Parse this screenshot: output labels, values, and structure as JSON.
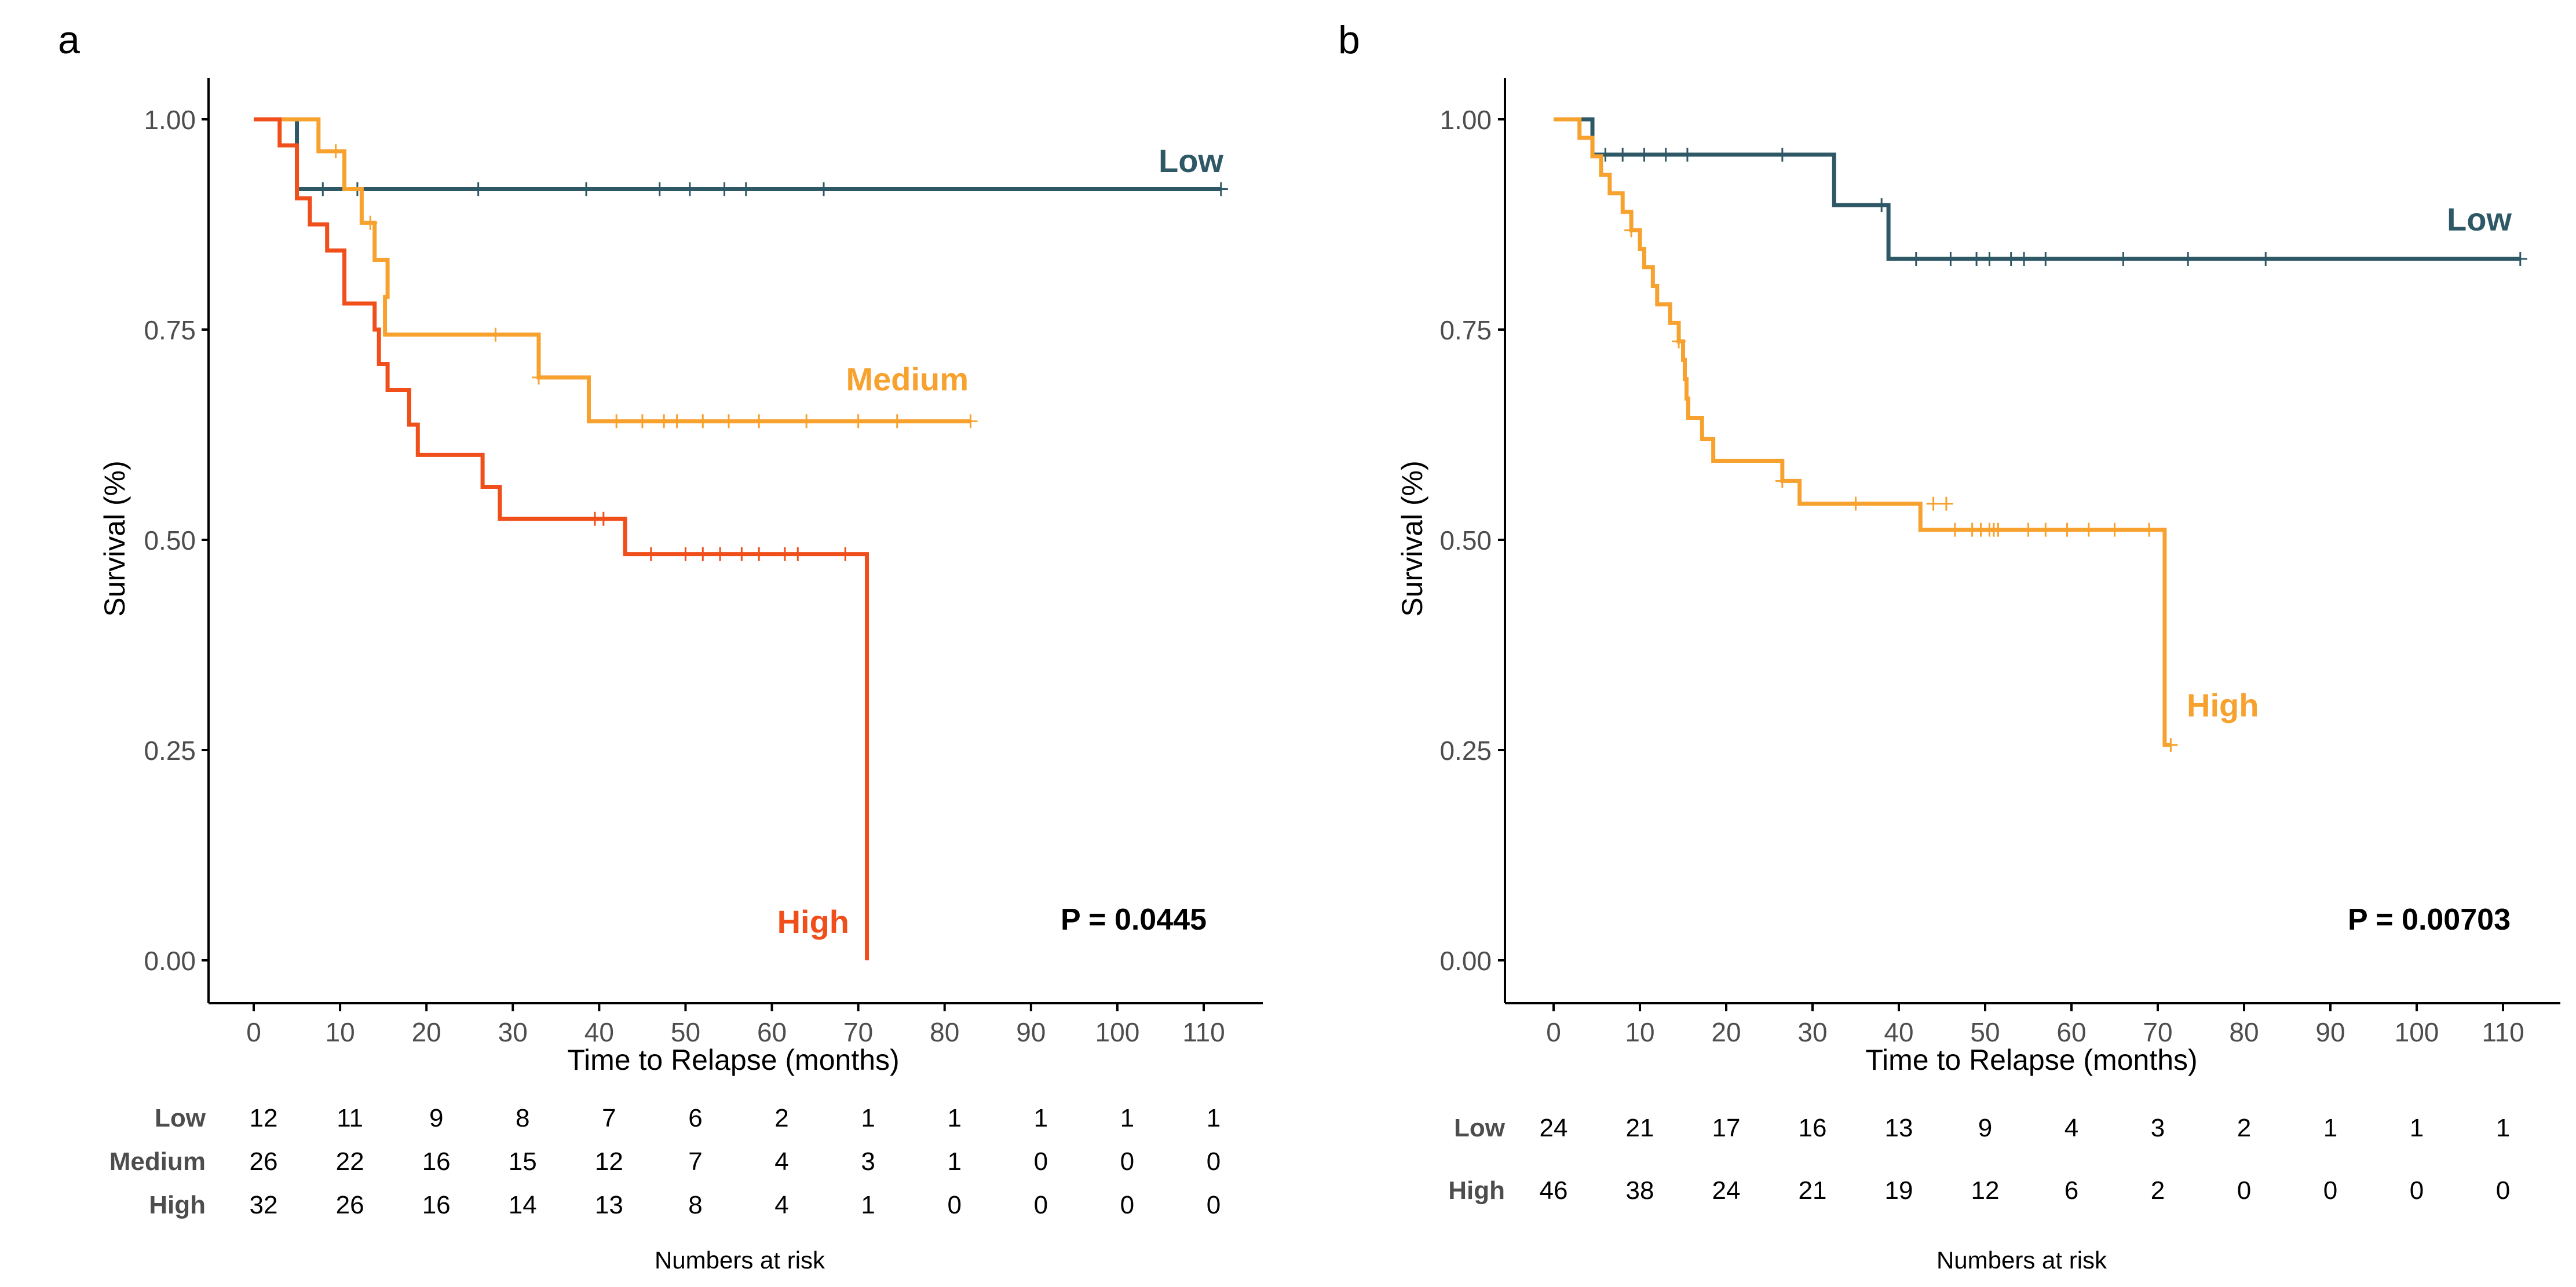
{
  "chart_data": [
    {
      "panel_label": "a",
      "type": "line",
      "subtype": "kaplan-meier",
      "xlabel": "Time to Relapse (months)",
      "ylabel": "Survival (%)",
      "xlim": [
        0,
        110
      ],
      "ylim": [
        0,
        1
      ],
      "xticks": [
        0,
        10,
        20,
        30,
        40,
        50,
        60,
        70,
        80,
        90,
        100,
        110
      ],
      "xtick_labels": [
        "0",
        "10",
        "20",
        "30",
        "40",
        "50",
        "60",
        "70",
        "80",
        "90",
        "100",
        "110"
      ],
      "yticks": [
        0,
        0.25,
        0.5,
        0.75,
        1
      ],
      "ytick_labels": [
        "0.00",
        "0.25",
        "0.50",
        "0.75",
        "1.00"
      ],
      "grid": false,
      "legend": "none (curve labels placed next to lines)",
      "pvalue": "P = 0.0445",
      "series": [
        {
          "name": "Low",
          "color": "#2F5866",
          "steps": [
            [
              0,
              1.0
            ],
            [
              5,
              0.917
            ],
            [
              112,
              0.917
            ]
          ],
          "censors": [
            [
              8,
              0.917
            ],
            [
              12,
              0.917
            ],
            [
              26,
              0.917
            ],
            [
              38.5,
              0.917
            ],
            [
              47,
              0.917
            ],
            [
              50.5,
              0.917
            ],
            [
              54.5,
              0.917
            ],
            [
              57,
              0.917
            ],
            [
              66,
              0.917
            ],
            [
              112,
              0.917
            ]
          ]
        },
        {
          "name": "Medium",
          "color": "#F7A12E",
          "steps": [
            [
              0,
              1.0
            ],
            [
              7.5,
              0.962
            ],
            [
              10.5,
              0.917
            ],
            [
              12.5,
              0.877
            ],
            [
              14,
              0.833
            ],
            [
              15.5,
              0.789
            ],
            [
              15.2,
              0.744
            ],
            [
              33,
              0.693
            ],
            [
              38.8,
              0.641
            ],
            [
              83,
              0.641
            ]
          ],
          "censors": [
            [
              9.5,
              0.962
            ],
            [
              13.5,
              0.877
            ],
            [
              28,
              0.744
            ],
            [
              33,
              0.693
            ],
            [
              42,
              0.641
            ],
            [
              45,
              0.641
            ],
            [
              47.5,
              0.641
            ],
            [
              49,
              0.641
            ],
            [
              52,
              0.641
            ],
            [
              55,
              0.641
            ],
            [
              58.5,
              0.641
            ],
            [
              64,
              0.641
            ],
            [
              70,
              0.641
            ],
            [
              74.5,
              0.641
            ],
            [
              83,
              0.641
            ]
          ]
        },
        {
          "name": "High",
          "color": "#F04E1A",
          "steps": [
            [
              0,
              1.0
            ],
            [
              3,
              0.969
            ],
            [
              5,
              0.906
            ],
            [
              6.5,
              0.875
            ],
            [
              8.5,
              0.844
            ],
            [
              10.5,
              0.781
            ],
            [
              14,
              0.75
            ],
            [
              14.5,
              0.709
            ],
            [
              15.5,
              0.678
            ],
            [
              18,
              0.637
            ],
            [
              19,
              0.601
            ],
            [
              26.5,
              0.563
            ],
            [
              28.5,
              0.525
            ],
            [
              43,
              0.483
            ],
            [
              71,
              0.483
            ],
            [
              71,
              0.0
            ]
          ],
          "censors": [
            [
              39.5,
              0.525
            ],
            [
              40.5,
              0.525
            ],
            [
              46,
              0.483
            ],
            [
              50,
              0.483
            ],
            [
              52,
              0.483
            ],
            [
              54,
              0.483
            ],
            [
              56.5,
              0.483
            ],
            [
              58.5,
              0.483
            ],
            [
              61.5,
              0.483
            ],
            [
              63,
              0.483
            ],
            [
              68.5,
              0.483
            ]
          ]
        }
      ],
      "risk_table": {
        "title": "Numbers at risk",
        "rows": [
          {
            "label": "Low",
            "values": [
              "12",
              "11",
              "9",
              "8",
              "7",
              "6",
              "2",
              "1",
              "1",
              "1",
              "1",
              "1"
            ]
          },
          {
            "label": "Medium",
            "values": [
              "26",
              "22",
              "16",
              "15",
              "12",
              "7",
              "4",
              "3",
              "1",
              "0",
              "0",
              "0"
            ]
          },
          {
            "label": "High",
            "values": [
              "32",
              "26",
              "16",
              "14",
              "13",
              "8",
              "4",
              "1",
              "0",
              "0",
              "0",
              "0"
            ]
          }
        ]
      }
    },
    {
      "panel_label": "b",
      "type": "line",
      "subtype": "kaplan-meier",
      "xlabel": "Time to Relapse (months)",
      "ylabel": "Survival (%)",
      "xlim": [
        0,
        110
      ],
      "ylim": [
        0,
        1
      ],
      "xticks": [
        0,
        10,
        20,
        30,
        40,
        50,
        60,
        70,
        80,
        90,
        100,
        110
      ],
      "xtick_labels": [
        "0",
        "10",
        "20",
        "30",
        "40",
        "50",
        "60",
        "70",
        "80",
        "90",
        "100",
        "110"
      ],
      "yticks": [
        0,
        0.25,
        0.5,
        0.75,
        1
      ],
      "ytick_labels": [
        "0.00",
        "0.25",
        "0.50",
        "0.75",
        "1.00"
      ],
      "grid": false,
      "legend": "none (curve labels placed next to lines)",
      "pvalue": "P = 0.00703",
      "series": [
        {
          "name": "Low",
          "color": "#2F5866",
          "steps": [
            [
              0,
              1.0
            ],
            [
              4.5,
              0.958
            ],
            [
              32.5,
              0.898
            ],
            [
              38.8,
              0.834
            ],
            [
              112,
              0.834
            ]
          ],
          "censors": [
            [
              6,
              0.958
            ],
            [
              8,
              0.958
            ],
            [
              10.5,
              0.958
            ],
            [
              13,
              0.958
            ],
            [
              15.5,
              0.958
            ],
            [
              26.5,
              0.958
            ],
            [
              38,
              0.898
            ],
            [
              42,
              0.834
            ],
            [
              46,
              0.834
            ],
            [
              49,
              0.834
            ],
            [
              50.5,
              0.834
            ],
            [
              53,
              0.834
            ],
            [
              54.5,
              0.834
            ],
            [
              57,
              0.834
            ],
            [
              66,
              0.834
            ],
            [
              73.5,
              0.834
            ],
            [
              82.5,
              0.834
            ],
            [
              112,
              0.834
            ]
          ]
        },
        {
          "name": "High",
          "color": "#F7A12E",
          "steps": [
            [
              0,
              1.0
            ],
            [
              3,
              0.978
            ],
            [
              4.5,
              0.956
            ],
            [
              5.5,
              0.934
            ],
            [
              6.5,
              0.912
            ],
            [
              8,
              0.89
            ],
            [
              9,
              0.868
            ],
            [
              10,
              0.846
            ],
            [
              10.5,
              0.824
            ],
            [
              11.5,
              0.802
            ],
            [
              12,
              0.78
            ],
            [
              13.5,
              0.758
            ],
            [
              14.5,
              0.736
            ],
            [
              15,
              0.714
            ],
            [
              15.2,
              0.691
            ],
            [
              15.4,
              0.668
            ],
            [
              15.6,
              0.645
            ],
            [
              17.2,
              0.62
            ],
            [
              18.5,
              0.594
            ],
            [
              26.5,
              0.57
            ],
            [
              28.5,
              0.543
            ],
            [
              42.5,
              0.512
            ],
            [
              70.8,
              0.512
            ],
            [
              70.8,
              0.256
            ],
            [
              71.5,
              0.256
            ]
          ],
          "censors": [
            [
              9,
              0.868
            ],
            [
              14.5,
              0.736
            ],
            [
              26.5,
              0.57
            ],
            [
              35,
              0.543
            ],
            [
              44,
              0.543
            ],
            [
              45.5,
              0.543
            ],
            [
              46.5,
              0.512
            ],
            [
              48.5,
              0.512
            ],
            [
              49.5,
              0.512
            ],
            [
              50.5,
              0.512
            ],
            [
              51,
              0.512
            ],
            [
              51.5,
              0.512
            ],
            [
              55,
              0.512
            ],
            [
              57,
              0.512
            ],
            [
              59.5,
              0.512
            ],
            [
              62,
              0.512
            ],
            [
              65,
              0.512
            ],
            [
              69,
              0.512
            ],
            [
              71.5,
              0.256
            ]
          ]
        }
      ],
      "risk_table": {
        "title": "Numbers at risk",
        "rows": [
          {
            "label": "Low",
            "values": [
              "24",
              "21",
              "17",
              "16",
              "13",
              "9",
              "4",
              "3",
              "2",
              "1",
              "1",
              "1"
            ]
          },
          {
            "label": "High",
            "values": [
              "46",
              "38",
              "24",
              "21",
              "19",
              "12",
              "6",
              "2",
              "0",
              "0",
              "0",
              "0"
            ]
          }
        ]
      }
    }
  ]
}
